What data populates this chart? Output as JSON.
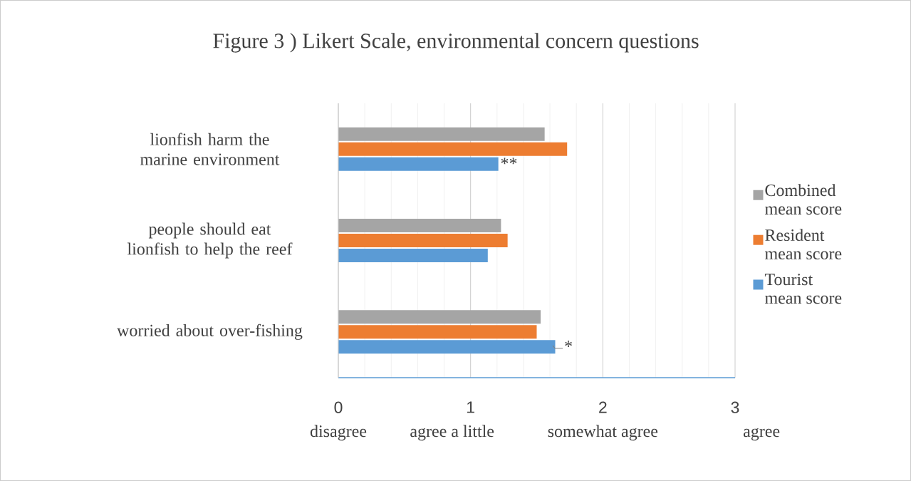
{
  "chart_data": {
    "type": "bar",
    "orientation": "horizontal",
    "title": "Figure 3 ) Likert Scale, environmental concern questions",
    "categories": [
      "lionfish harm the marine environment",
      "people should eat lionfish to help the reef",
      "worried about over-fishing"
    ],
    "series": [
      {
        "name": "Tourist mean score",
        "color": "#5b9bd5",
        "values": [
          1.21,
          1.13,
          1.64
        ]
      },
      {
        "name": "Resident mean score",
        "color": "#ed7d31",
        "values": [
          1.73,
          1.28,
          1.5
        ]
      },
      {
        "name": "Combined mean score",
        "color": "#a5a5a5",
        "values": [
          1.56,
          1.23,
          1.53
        ]
      }
    ],
    "xlim": [
      0,
      3
    ],
    "xticks": [
      0,
      1,
      2,
      3
    ],
    "grid": "x",
    "legend": "right",
    "annotations": [
      "**",
      "*",
      "disagree",
      "agree   a little",
      "somewhat agree",
      "agree"
    ]
  }
}
